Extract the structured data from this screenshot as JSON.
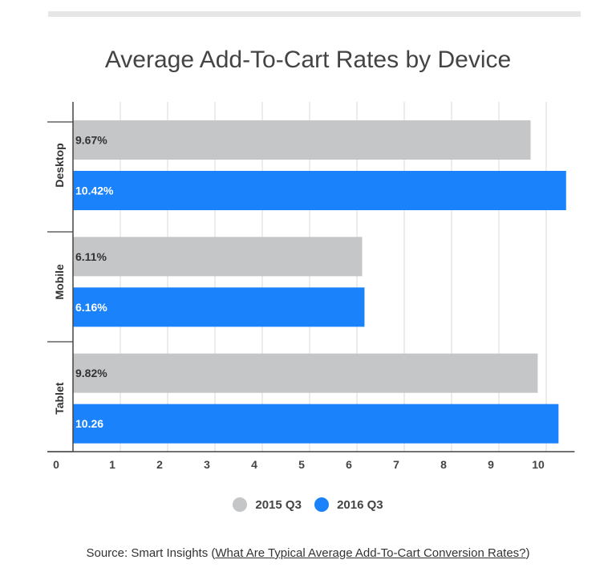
{
  "chart_data": {
    "type": "bar",
    "orientation": "horizontal",
    "title": "Average Add-To-Cart Rates by Device",
    "categories": [
      "Desktop",
      "Mobile",
      "Tablet"
    ],
    "series": [
      {
        "name": "2015 Q3",
        "color": "#c4c6c8",
        "label_color": "#333333",
        "values": [
          9.67,
          6.11,
          9.82
        ],
        "labels": [
          "9.67%",
          "6.11%",
          "9.82%"
        ]
      },
      {
        "name": "2016 Q3",
        "color": "#1a82fb",
        "label_color": "#ffffff",
        "values": [
          10.42,
          6.16,
          10.26
        ],
        "labels": [
          "10.42%",
          "6.16%",
          "10.26"
        ]
      }
    ],
    "x_ticks": [
      "0",
      "1",
      "2",
      "3",
      "4",
      "5",
      "6",
      "7",
      "8",
      "9",
      "10"
    ],
    "xlim": [
      0,
      10.6
    ],
    "grid": true,
    "legend_position": "bottom"
  },
  "source": {
    "prefix": "Source: Smart Insights (",
    "link_text": "What Are Typical Average Add-To-Cart Conversion Rates?",
    "suffix": ")"
  }
}
